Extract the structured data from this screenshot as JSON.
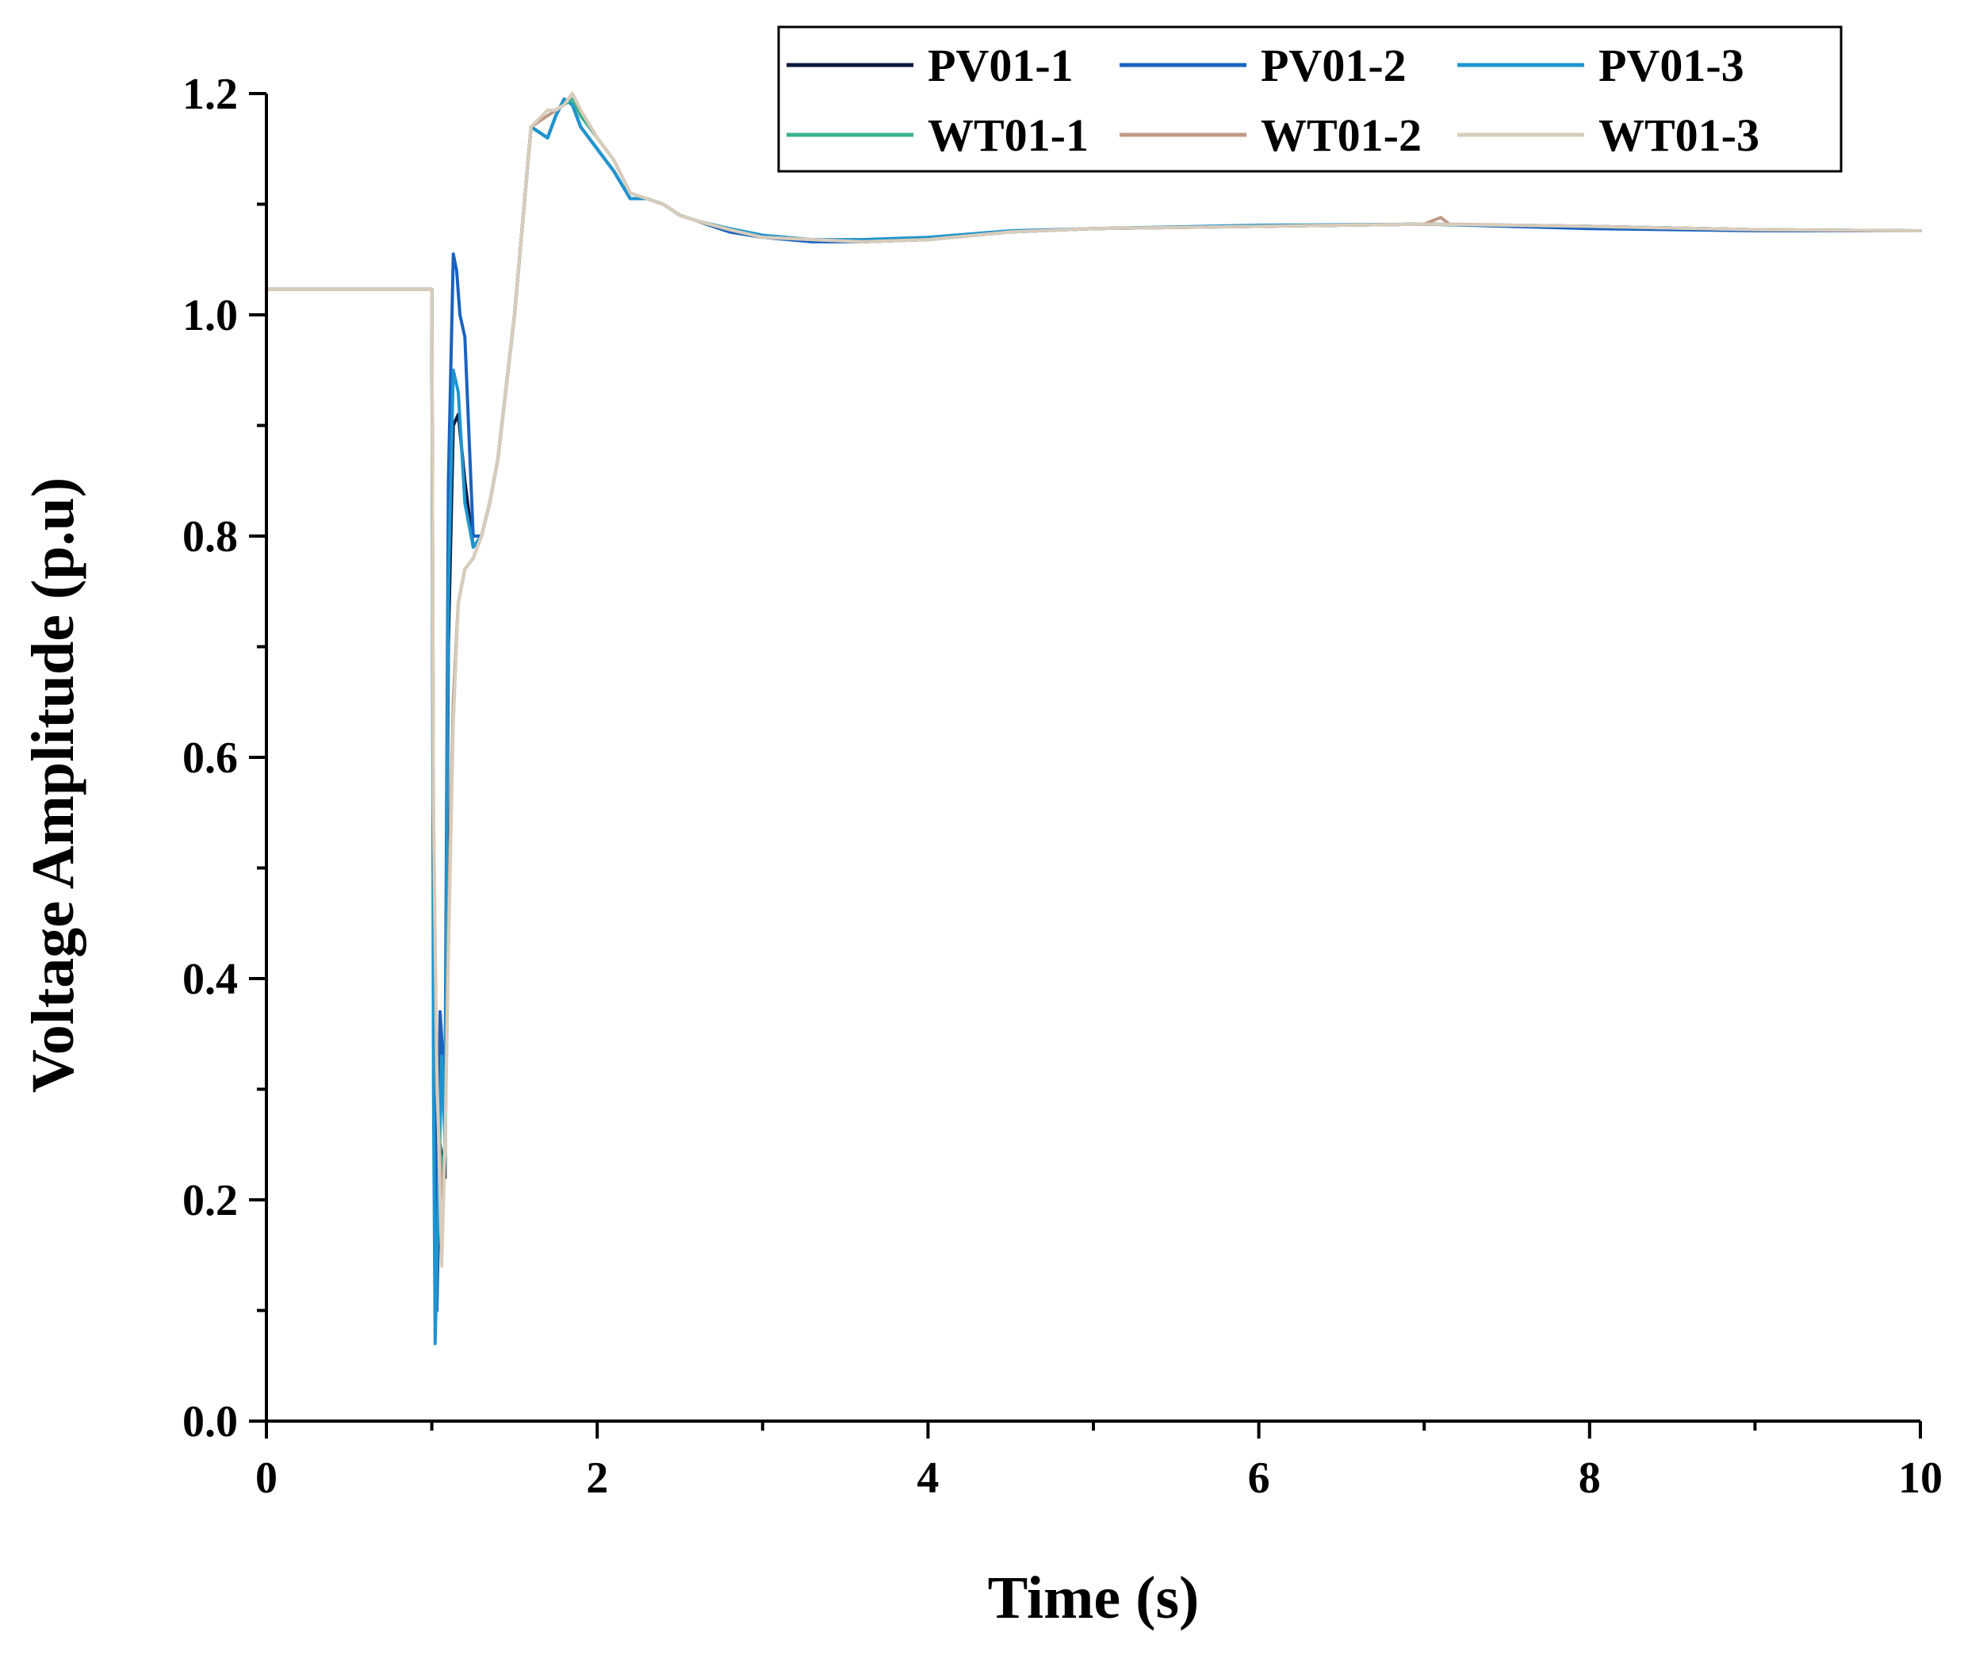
{
  "chart_data": {
    "type": "line",
    "title": "",
    "xlabel": "Time (s)",
    "ylabel": "Voltage Amplitude (p.u)",
    "xlim": [
      0,
      10
    ],
    "ylim": [
      0,
      1.2
    ],
    "x_ticks": [
      0,
      2,
      4,
      6,
      8,
      10
    ],
    "x_tick_labels": [
      "0",
      "2",
      "4",
      "6",
      "8",
      "10"
    ],
    "x_minor_ticks": [
      1,
      3,
      5,
      7,
      9
    ],
    "y_ticks": [
      0,
      0.2,
      0.4,
      0.6,
      0.8,
      1.0,
      1.2
    ],
    "y_tick_labels": [
      "0.0",
      "0.2",
      "0.4",
      "0.6",
      "0.8",
      "1.0",
      "1.2"
    ],
    "y_minor_ticks": [
      0.1,
      0.3,
      0.5,
      0.7,
      0.9,
      1.1
    ],
    "grid": false,
    "legend_position": "top-right",
    "series": [
      {
        "name": "PV01-1",
        "color": "#0b1a3f",
        "x": [
          0,
          1.0,
          1.01,
          1.03,
          1.05,
          1.08,
          1.1,
          1.13,
          1.16,
          1.2,
          1.25,
          1.3,
          1.35,
          1.4,
          1.5,
          1.6,
          1.7,
          1.75,
          1.8,
          1.85,
          1.9,
          2.0,
          2.1,
          2.2,
          2.3,
          2.4,
          2.5,
          2.6,
          2.8,
          3.0,
          3.3,
          3.6,
          4.0,
          4.5,
          5.0,
          6.0,
          7.0,
          8.0,
          9.0,
          10.0
        ],
        "y": [
          1.023,
          1.023,
          0.5,
          0.1,
          0.25,
          0.22,
          0.7,
          0.9,
          0.91,
          0.85,
          0.79,
          0.8,
          0.83,
          0.87,
          1.0,
          1.17,
          1.16,
          1.18,
          1.195,
          1.19,
          1.17,
          1.15,
          1.13,
          1.105,
          1.105,
          1.1,
          1.09,
          1.085,
          1.075,
          1.07,
          1.068,
          1.066,
          1.068,
          1.075,
          1.078,
          1.08,
          1.082,
          1.08,
          1.077,
          1.076
        ]
      },
      {
        "name": "PV01-2",
        "color": "#1a62c0",
        "x": [
          0,
          1.0,
          1.01,
          1.03,
          1.05,
          1.08,
          1.1,
          1.13,
          1.15,
          1.17,
          1.2,
          1.25,
          1.3,
          1.35,
          1.4,
          1.5,
          1.6,
          1.7,
          1.75,
          1.8,
          1.85,
          1.9,
          2.0,
          2.1,
          2.2,
          2.3,
          2.4,
          2.5,
          2.6,
          2.8,
          3.0,
          3.3,
          3.6,
          4.0,
          4.5,
          5.0,
          6.0,
          7.0,
          8.0,
          9.0,
          10.0
        ],
        "y": [
          1.023,
          1.023,
          0.4,
          0.1,
          0.37,
          0.3,
          0.85,
          1.055,
          1.04,
          1.0,
          0.98,
          0.8,
          0.8,
          0.83,
          0.87,
          1.0,
          1.17,
          1.16,
          1.18,
          1.195,
          1.19,
          1.17,
          1.15,
          1.13,
          1.105,
          1.105,
          1.1,
          1.09,
          1.085,
          1.075,
          1.07,
          1.066,
          1.066,
          1.068,
          1.075,
          1.078,
          1.08,
          1.082,
          1.078,
          1.076,
          1.076
        ]
      },
      {
        "name": "PV01-3",
        "color": "#1f95cf",
        "x": [
          0,
          1.0,
          1.01,
          1.02,
          1.04,
          1.06,
          1.08,
          1.1,
          1.13,
          1.16,
          1.2,
          1.25,
          1.3,
          1.35,
          1.4,
          1.5,
          1.6,
          1.7,
          1.75,
          1.8,
          1.85,
          1.9,
          2.0,
          2.1,
          2.2,
          2.3,
          2.4,
          2.5,
          2.6,
          2.8,
          3.0,
          3.3,
          3.6,
          4.0,
          4.5,
          5.0,
          6.0,
          7.0,
          8.0,
          9.0,
          10.0
        ],
        "y": [
          1.023,
          1.023,
          0.3,
          0.07,
          0.2,
          0.33,
          0.25,
          0.75,
          0.95,
          0.93,
          0.83,
          0.79,
          0.8,
          0.83,
          0.87,
          1.0,
          1.17,
          1.16,
          1.18,
          1.195,
          1.19,
          1.17,
          1.15,
          1.13,
          1.105,
          1.105,
          1.1,
          1.09,
          1.085,
          1.078,
          1.072,
          1.068,
          1.068,
          1.07,
          1.076,
          1.078,
          1.081,
          1.082,
          1.08,
          1.077,
          1.076
        ]
      },
      {
        "name": "WT01-1",
        "color": "#3bb08f",
        "x": [
          0,
          1.0,
          1.01,
          1.03,
          1.06,
          1.08,
          1.1,
          1.13,
          1.16,
          1.2,
          1.25,
          1.3,
          1.35,
          1.4,
          1.5,
          1.6,
          1.7,
          1.75,
          1.8,
          1.85,
          1.9,
          2.0,
          2.1,
          2.2,
          2.3,
          2.4,
          2.5,
          2.6,
          2.8,
          3.0,
          3.3,
          3.6,
          4.0,
          4.5,
          5.0,
          6.0,
          7.0,
          8.0,
          9.0,
          10.0
        ],
        "y": [
          1.023,
          1.023,
          0.55,
          0.3,
          0.22,
          0.25,
          0.45,
          0.65,
          0.74,
          0.77,
          0.78,
          0.8,
          0.83,
          0.87,
          1.0,
          1.17,
          1.18,
          1.185,
          1.19,
          1.195,
          1.18,
          1.16,
          1.14,
          1.11,
          1.105,
          1.1,
          1.09,
          1.085,
          1.077,
          1.07,
          1.068,
          1.066,
          1.068,
          1.075,
          1.078,
          1.08,
          1.082,
          1.08,
          1.077,
          1.076
        ]
      },
      {
        "name": "WT01-2",
        "color": "#c09a86",
        "x": [
          0,
          1.0,
          1.01,
          1.03,
          1.06,
          1.08,
          1.1,
          1.13,
          1.16,
          1.2,
          1.25,
          1.3,
          1.35,
          1.4,
          1.5,
          1.6,
          1.7,
          1.75,
          1.8,
          1.85,
          1.9,
          2.0,
          2.1,
          2.2,
          2.3,
          2.4,
          2.5,
          2.6,
          2.8,
          3.0,
          3.3,
          3.6,
          4.0,
          4.5,
          5.0,
          6.0,
          7.0,
          7.1,
          7.15,
          8.0,
          9.0,
          10.0
        ],
        "y": [
          1.023,
          1.023,
          0.55,
          0.3,
          0.2,
          0.24,
          0.45,
          0.65,
          0.74,
          0.77,
          0.78,
          0.8,
          0.83,
          0.87,
          1.0,
          1.17,
          1.18,
          1.185,
          1.19,
          1.2,
          1.185,
          1.16,
          1.14,
          1.11,
          1.105,
          1.1,
          1.09,
          1.085,
          1.077,
          1.07,
          1.068,
          1.066,
          1.068,
          1.075,
          1.078,
          1.08,
          1.082,
          1.088,
          1.082,
          1.08,
          1.077,
          1.076
        ]
      },
      {
        "name": "WT01-3",
        "color": "#d8ccbc",
        "x": [
          0,
          1.0,
          1.01,
          1.03,
          1.06,
          1.08,
          1.1,
          1.13,
          1.16,
          1.2,
          1.25,
          1.3,
          1.35,
          1.4,
          1.5,
          1.6,
          1.7,
          1.75,
          1.8,
          1.85,
          1.9,
          2.0,
          2.1,
          2.2,
          2.3,
          2.4,
          2.5,
          2.6,
          2.8,
          3.0,
          3.3,
          3.6,
          4.0,
          4.5,
          5.0,
          6.0,
          7.0,
          8.0,
          9.0,
          10.0
        ],
        "y": [
          1.023,
          1.023,
          0.56,
          0.32,
          0.14,
          0.25,
          0.42,
          0.63,
          0.74,
          0.77,
          0.78,
          0.8,
          0.83,
          0.87,
          1.0,
          1.17,
          1.185,
          1.185,
          1.19,
          1.2,
          1.185,
          1.16,
          1.14,
          1.11,
          1.105,
          1.1,
          1.09,
          1.085,
          1.077,
          1.07,
          1.068,
          1.066,
          1.068,
          1.075,
          1.078,
          1.08,
          1.082,
          1.08,
          1.077,
          1.076
        ]
      }
    ]
  }
}
